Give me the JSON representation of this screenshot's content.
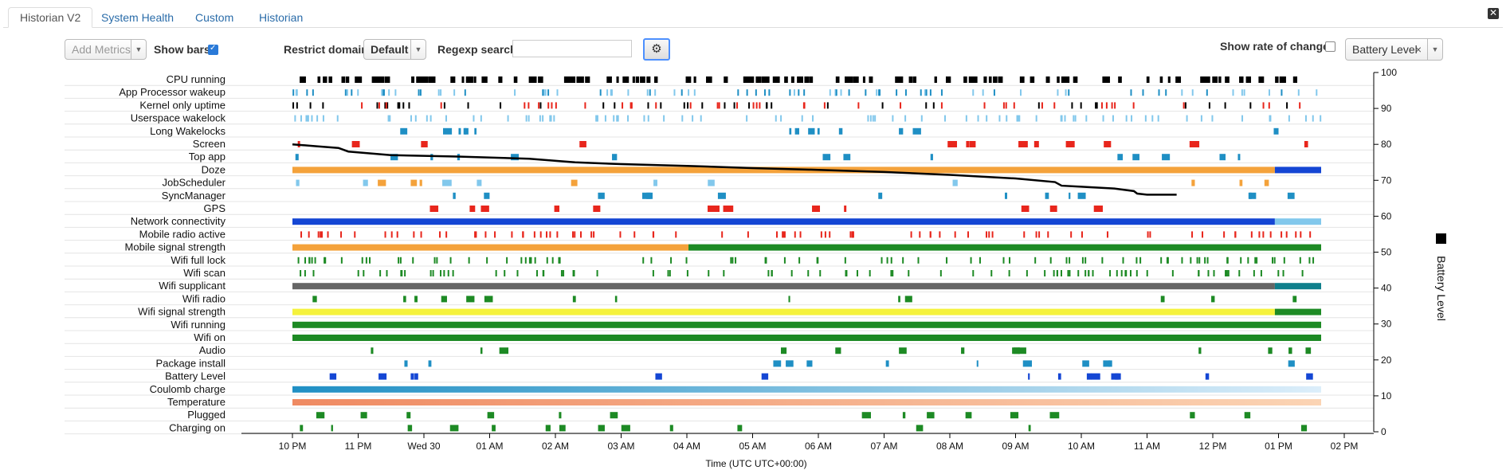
{
  "tabs": [
    {
      "label": "Historian V2",
      "active": true
    },
    {
      "label": "System Health",
      "active": false
    },
    {
      "label": "Custom",
      "active": false
    },
    {
      "label": "Historian",
      "active": false
    }
  ],
  "controls": {
    "add_metrics_placeholder": "Add Metrics",
    "show_bars_label": "Show bars",
    "show_bars_checked": true,
    "restrict_domain_label": "Restrict domain",
    "restrict_domain_value": "Default",
    "regexp_label": "Regexp search",
    "regexp_value": "",
    "show_rate_label": "Show rate of change",
    "show_rate_checked": false,
    "metric_selected": "Battery Level"
  },
  "icons": {
    "close": "close-icon",
    "gear": "gear-icon",
    "caret": "chevron-down-icon"
  },
  "colors": {
    "black": "#000000",
    "light_blue": "#82c8ec",
    "teal": "#1f8fc4",
    "red": "#e8261c",
    "orange": "#f4a23b",
    "blue": "#1446d4",
    "green": "#1d8a24",
    "yellow": "#f5f23c",
    "gray": "#666666",
    "dark_teal": "#0f7f8c",
    "accent": "#4d90fe"
  },
  "chart_data": {
    "type": "timeline",
    "xlabel": "Time (UTC UTC+00:00)",
    "x_ticks": [
      "10 PM",
      "11 PM",
      "Wed 30",
      "01 AM",
      "02 AM",
      "03 AM",
      "04 AM",
      "05 AM",
      "06 AM",
      "07 AM",
      "08 AM",
      "09 AM",
      "10 AM",
      "11 AM",
      "12 PM",
      "01 PM",
      "02 PM"
    ],
    "x_range_hours": [
      -0.8,
      16.7
    ],
    "y_right_ticks": [
      0,
      10,
      20,
      30,
      40,
      50,
      60,
      70,
      80,
      90,
      100
    ],
    "y_right_label": "Battery Level",
    "ylim": [
      0,
      100
    ],
    "rows": [
      {
        "name": "CPU running",
        "style": "dense",
        "colors": [
          "#000000"
        ]
      },
      {
        "name": "App Processor wakeup",
        "style": "ticks",
        "colors": [
          "#1f8fc4",
          "#82c8ec"
        ]
      },
      {
        "name": "Kernel only uptime",
        "style": "ticks",
        "colors": [
          "#e8261c",
          "#000000"
        ]
      },
      {
        "name": "Userspace wakelock",
        "style": "ticks",
        "colors": [
          "#82c8ec"
        ]
      },
      {
        "name": "Long Wakelocks",
        "style": "sparse",
        "colors": [
          "#1f8fc4"
        ]
      },
      {
        "name": "Screen",
        "style": "sparse",
        "colors": [
          "#e8261c"
        ]
      },
      {
        "name": "Top app",
        "style": "sparse",
        "colors": [
          "#1f8fc4"
        ]
      },
      {
        "name": "Doze",
        "style": "segments",
        "colors": [
          "#f4a23b",
          "#1446d4"
        ]
      },
      {
        "name": "JobScheduler",
        "style": "sparse",
        "colors": [
          "#82c8ec",
          "#f4a23b"
        ]
      },
      {
        "name": "SyncManager",
        "style": "sparse",
        "colors": [
          "#1f8fc4"
        ]
      },
      {
        "name": "GPS",
        "style": "sparse",
        "colors": [
          "#e8261c"
        ]
      },
      {
        "name": "Network connectivity",
        "style": "segments",
        "colors": [
          "#1446d4",
          "#82c8ec"
        ]
      },
      {
        "name": "Mobile radio active",
        "style": "ticks",
        "colors": [
          "#e8261c"
        ]
      },
      {
        "name": "Mobile signal strength",
        "style": "segments",
        "colors": [
          "#f4a23b",
          "#1d8a24"
        ]
      },
      {
        "name": "Wifi full lock",
        "style": "ticks",
        "colors": [
          "#1d8a24"
        ]
      },
      {
        "name": "Wifi scan",
        "style": "ticks",
        "colors": [
          "#1d8a24"
        ]
      },
      {
        "name": "Wifi supplicant",
        "style": "segments",
        "colors": [
          "#666666",
          "#0f7f8c"
        ]
      },
      {
        "name": "Wifi radio",
        "style": "sparse",
        "colors": [
          "#1d8a24"
        ]
      },
      {
        "name": "Wifi signal strength",
        "style": "segments",
        "colors": [
          "#f5f23c",
          "#1d8a24"
        ]
      },
      {
        "name": "Wifi running",
        "style": "full",
        "colors": [
          "#1d8a24"
        ]
      },
      {
        "name": "Wifi on",
        "style": "full",
        "colors": [
          "#1d8a24"
        ]
      },
      {
        "name": "Audio",
        "style": "sparse",
        "colors": [
          "#1d8a24"
        ]
      },
      {
        "name": "Package install",
        "style": "sparse",
        "colors": [
          "#1f8fc4"
        ]
      },
      {
        "name": "Battery Level",
        "style": "sparse",
        "colors": [
          "#1446d4"
        ]
      },
      {
        "name": "Coulomb charge",
        "style": "gradient",
        "colors": [
          "#1f8fc4",
          "#dceefa"
        ]
      },
      {
        "name": "Temperature",
        "style": "gradient",
        "colors": [
          "#ef8a62",
          "#fbd4b4"
        ]
      },
      {
        "name": "Plugged",
        "style": "sparse",
        "colors": [
          "#1d8a24"
        ]
      },
      {
        "name": "Charging on",
        "style": "sparse",
        "colors": [
          "#1d8a24"
        ]
      }
    ],
    "battery_series": {
      "name": "Battery Level",
      "x_hours": [
        0.0,
        0.35,
        0.7,
        0.85,
        1.5,
        2.5,
        3.6,
        4.3,
        5.0,
        6.0,
        7.0,
        8.0,
        9.0,
        10.0,
        11.0,
        11.6,
        11.7,
        12.0,
        12.5,
        12.8,
        12.85,
        13.0,
        13.45
      ],
      "y_values": [
        80,
        79.5,
        79,
        78,
        77,
        76.6,
        76,
        75,
        74.5,
        74,
        73.4,
        72.9,
        72.3,
        71.5,
        70.5,
        69.5,
        68.5,
        68.2,
        67.7,
        67,
        66.3,
        66,
        66
      ]
    }
  }
}
